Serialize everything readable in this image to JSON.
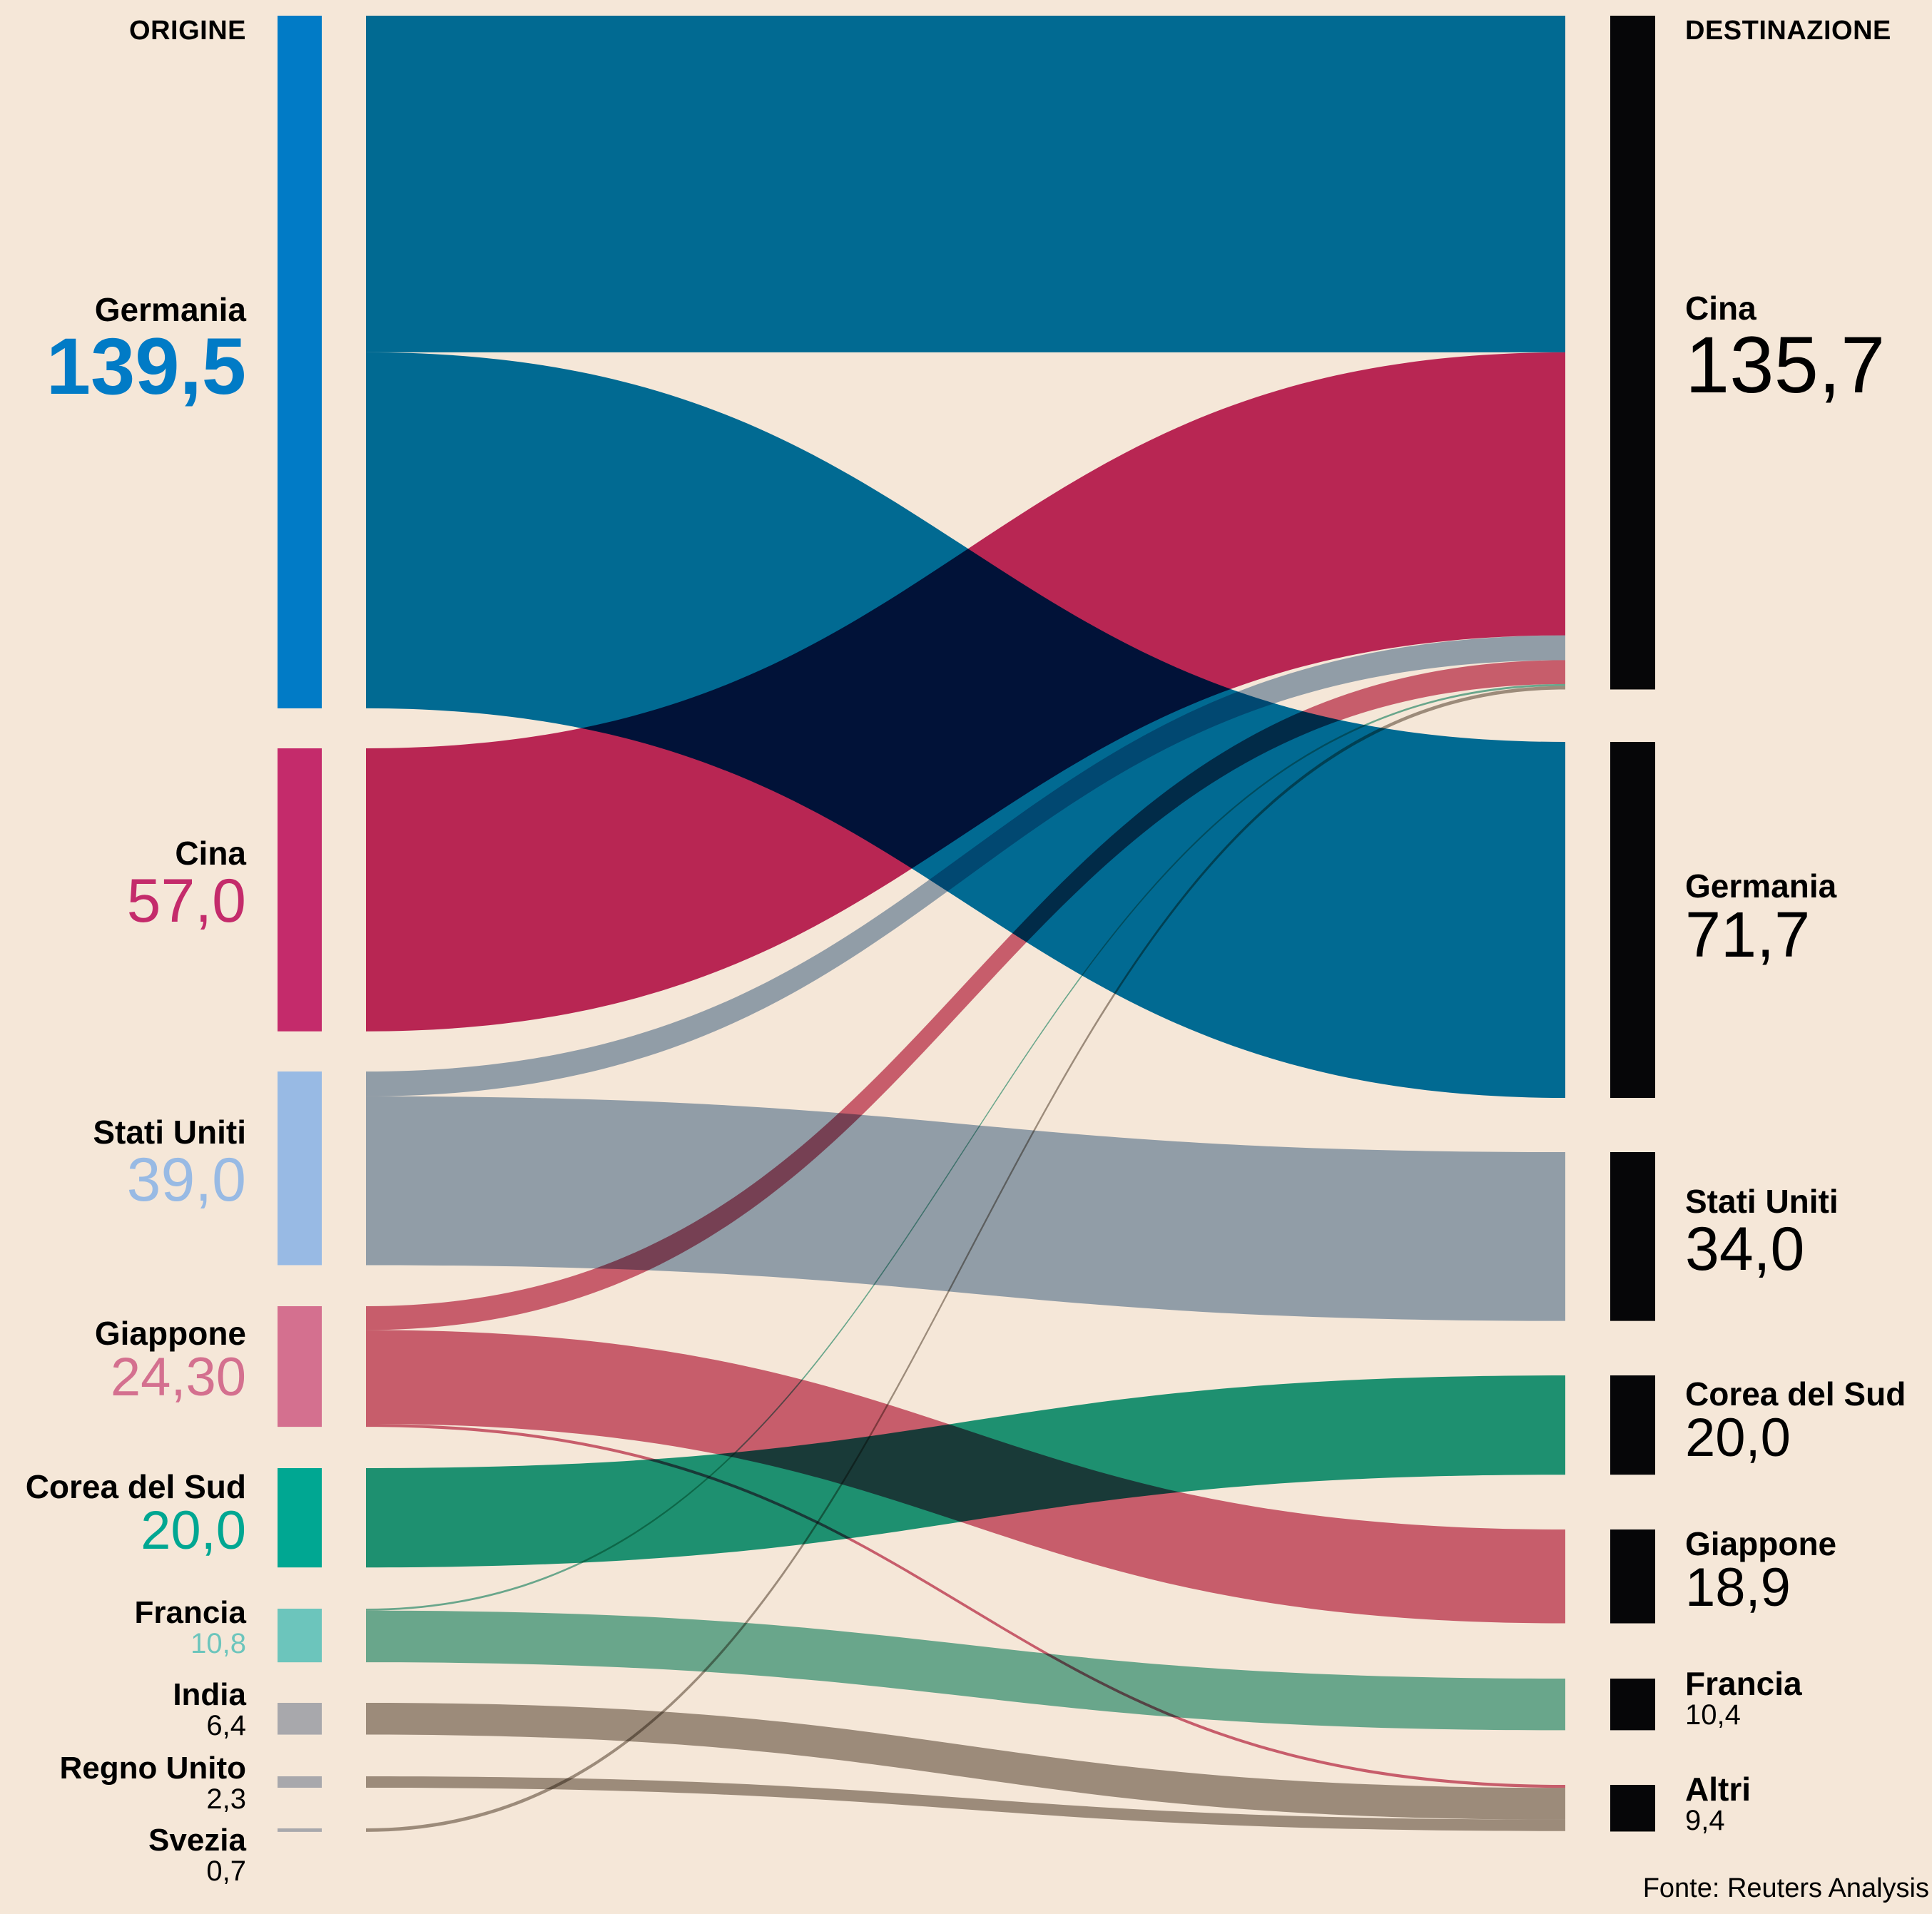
{
  "chart_data": {
    "type": "sankey",
    "title": "",
    "left_header": "ORIGINE",
    "right_header": "DESTINAZIONE",
    "source_note": "Fonte: Reuters Analysis",
    "origins": [
      {
        "id": "o_germania",
        "name": "Germania",
        "value": 139.5,
        "value_label": "139,5",
        "color": "#017bc6",
        "flow_color": "#0175ad"
      },
      {
        "id": "o_cina",
        "name": "Cina",
        "value": 57.0,
        "value_label": "57,0",
        "color": "#c42b6b",
        "flow_color": "#c02a62"
      },
      {
        "id": "o_stati_uniti",
        "name": "Stati Uniti",
        "value": 39.0,
        "value_label": "39,0",
        "color": "#98bae4",
        "flow_color": "#97adc5"
      },
      {
        "id": "o_giappone",
        "name": "Giappone",
        "value": 24.3,
        "value_label": "24,30",
        "color": "#d4708f",
        "flow_color": "#cf677e"
      },
      {
        "id": "o_corea",
        "name": "Corea del Sud",
        "value": 20.0,
        "value_label": "20,0",
        "color": "#00a792",
        "flow_color": "#1f9f84"
      },
      {
        "id": "o_francia",
        "name": "Francia",
        "value": 10.8,
        "value_label": "10,8",
        "color": "#6cc5bc",
        "flow_color": "#6db7a4"
      },
      {
        "id": "o_india",
        "name": "India",
        "value": 6.4,
        "value_label": "6,4",
        "color": "#a8a8ac",
        "flow_color": "#a29990"
      },
      {
        "id": "o_regno_unito",
        "name": "Regno Unito",
        "value": 2.3,
        "value_label": "2,3",
        "color": "#a8a8ac",
        "flow_color": "#a29990"
      },
      {
        "id": "o_svezia",
        "name": "Svezia",
        "value": 0.7,
        "value_label": "0,7",
        "color": "#a8a8ac",
        "flow_color": "#a29990"
      }
    ],
    "destinations": [
      {
        "id": "d_cina",
        "name": "Cina",
        "value": 135.7,
        "value_label": "135,7",
        "color": "#060608"
      },
      {
        "id": "d_germania",
        "name": "Germania",
        "value": 71.7,
        "value_label": "71,7",
        "color": "#060608"
      },
      {
        "id": "d_stati_uniti",
        "name": "Stati Uniti",
        "value": 34.0,
        "value_label": "34,0",
        "color": "#060608"
      },
      {
        "id": "d_corea",
        "name": "Corea del Sud",
        "value": 20.0,
        "value_label": "20,0",
        "color": "#060608"
      },
      {
        "id": "d_giappone",
        "name": "Giappone",
        "value": 18.9,
        "value_label": "18,9",
        "color": "#060608"
      },
      {
        "id": "d_francia",
        "name": "Francia",
        "value": 10.4,
        "value_label": "10,4",
        "color": "#060608"
      },
      {
        "id": "d_altri",
        "name": "Altri",
        "value": 9.4,
        "value_label": "9,4",
        "color": "#060608"
      }
    ],
    "links": [
      {
        "source": "o_germania",
        "target": "d_cina",
        "value": 67.8
      },
      {
        "source": "o_germania",
        "target": "d_germania",
        "value": 71.7
      },
      {
        "source": "o_cina",
        "target": "d_cina",
        "value": 57.0
      },
      {
        "source": "o_stati_uniti",
        "target": "d_cina",
        "value": 5.0
      },
      {
        "source": "o_stati_uniti",
        "target": "d_stati_uniti",
        "value": 34.0
      },
      {
        "source": "o_giappone",
        "target": "d_cina",
        "value": 4.8
      },
      {
        "source": "o_giappone",
        "target": "d_giappone",
        "value": 18.9
      },
      {
        "source": "o_giappone",
        "target": "d_altri",
        "value": 0.6
      },
      {
        "source": "o_corea",
        "target": "d_corea",
        "value": 20.0
      },
      {
        "source": "o_francia",
        "target": "d_cina",
        "value": 0.4
      },
      {
        "source": "o_francia",
        "target": "d_francia",
        "value": 10.4
      },
      {
        "source": "o_india",
        "target": "d_altri",
        "value": 6.4
      },
      {
        "source": "o_regno_unito",
        "target": "d_altri",
        "value": 2.3
      },
      {
        "source": "o_svezia",
        "target": "d_cina",
        "value": 0.7
      }
    ]
  }
}
